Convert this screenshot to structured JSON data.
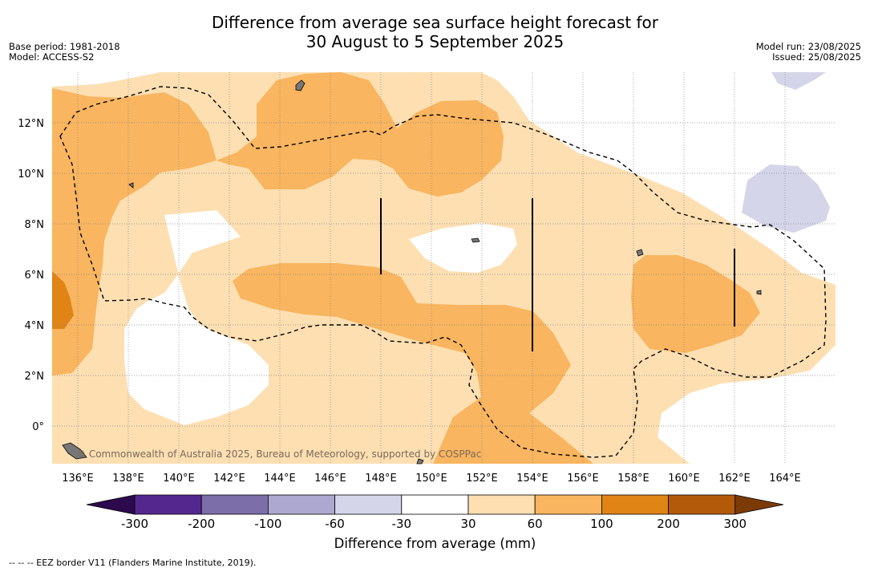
{
  "title_line1": "Difference from average sea surface height forecast for",
  "title_line2": "30 August to 5 September 2025",
  "meta_left": [
    "Base period: 1981-2018",
    "Model: ACCESS-S2"
  ],
  "meta_right": [
    "Model run: 23/08/2025",
    "Issued: 25/08/2025"
  ],
  "map": {
    "lon_labels": [
      "136°E",
      "138°E",
      "140°E",
      "142°E",
      "144°E",
      "146°E",
      "148°E",
      "150°E",
      "152°E",
      "154°E",
      "156°E",
      "158°E",
      "160°E",
      "162°E",
      "164°E"
    ],
    "lat_labels": [
      "12°N",
      "10°N",
      "8°N",
      "6°N",
      "4°N",
      "2°N",
      "0°"
    ],
    "credit": "© Commonwealth of Australia 2025, Bureau of Meteorology, supported by COSPPac"
  },
  "colorbar": {
    "ticks": [
      "-300",
      "-200",
      "-100",
      "-60",
      "-30",
      "30",
      "60",
      "100",
      "200",
      "300"
    ],
    "colors": [
      "#2d0a4e",
      "#54278f",
      "#7b6ea9",
      "#aca8cf",
      "#d5d5ea",
      "#ffffff",
      "#fddfb2",
      "#f9b55f",
      "#e08416",
      "#b25a0a",
      "#7c3a06"
    ],
    "title": "Difference from average (mm)"
  },
  "footnote": "--  --  -- EEZ border V11 (Flanders Marine Institute, 2019)."
}
